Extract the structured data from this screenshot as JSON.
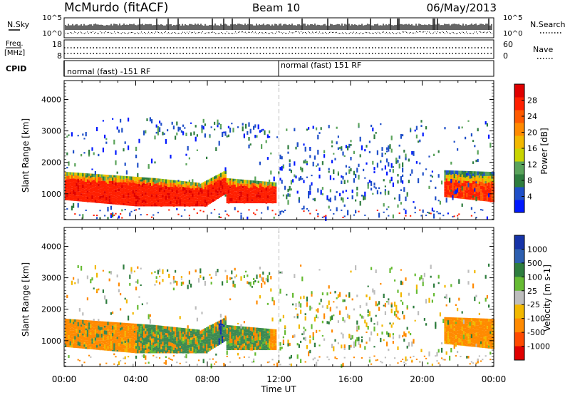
{
  "header": {
    "station": "McMurdo (fitACF)",
    "beam": "Beam 10",
    "date": "06/May/2013"
  },
  "noise_panel": {
    "left_label": "N.Sky",
    "right_label": "N.Search",
    "left_top_tick": "10^5",
    "left_bottom_tick": "10^0",
    "right_top_tick": "10^5",
    "right_bottom_tick": "10^0"
  },
  "freq_panel": {
    "left_label_1": "Freq.",
    "left_label_2": "[MHz]",
    "right_label": "Nave",
    "left_top_tick": "18",
    "left_bottom_tick": "8",
    "right_top_tick": "60",
    "right_bottom_tick": "0"
  },
  "cpid_panel": {
    "label": "CPID",
    "segments": [
      {
        "text": "normal (fast) -151 RF",
        "start_hour": 0,
        "end_hour": 12
      },
      {
        "text": "normal (fast) 151 RF",
        "start_hour": 12,
        "end_hour": 24
      }
    ]
  },
  "chart_data": [
    {
      "type": "heatmap",
      "title": "",
      "quantity": "Power",
      "ylabel": "Slant Range [km]",
      "xlabel": "Time UT",
      "xlim": [
        0,
        24
      ],
      "ylim": [
        180,
        4600
      ],
      "x_tick_labels": [
        "00:00",
        "04:00",
        "08:00",
        "12:00",
        "16:00",
        "20:00",
        "00:00"
      ],
      "y_ticks": [
        1000,
        2000,
        3000,
        4000
      ],
      "colorbar": {
        "label": "Power [dB]",
        "ticks": [
          "4",
          "8",
          "12",
          "16",
          "20",
          "24",
          "28"
        ],
        "colors": [
          "#0019ff",
          "#1f4fc8",
          "#2e7d3e",
          "#5aa35a",
          "#c9d400",
          "#f2b800",
          "#ff8a00",
          "#ff5a00",
          "#ff1f00",
          "#e00000"
        ]
      },
      "features": [
        {
          "name": "main band",
          "start_hour": 0,
          "end_hour": 11.8,
          "range_km": [
            600,
            1700
          ],
          "level": "strong (24-30 dB)"
        },
        {
          "name": "patches",
          "start_hour": 12,
          "end_hour": 19,
          "range_km": [
            800,
            2500
          ],
          "level": "weak (4-10 dB)"
        },
        {
          "name": "late band",
          "start_hour": 21.2,
          "end_hour": 24,
          "range_km": [
            800,
            1800
          ],
          "level": "moderate to strong"
        }
      ]
    },
    {
      "type": "heatmap",
      "title": "",
      "quantity": "Velocity",
      "ylabel": "Slant Range [km]",
      "xlabel": "Time UT",
      "xlim": [
        0,
        24
      ],
      "ylim": [
        180,
        4600
      ],
      "x_tick_labels": [
        "00:00",
        "04:00",
        "08:00",
        "12:00",
        "16:00",
        "20:00",
        "00:00"
      ],
      "y_ticks": [
        1000,
        2000,
        3000,
        4000
      ],
      "colorbar": {
        "label": "Velocity [m s-1]",
        "ticks": [
          "1000",
          "500",
          "100",
          "25",
          "-25",
          "-100",
          "-500",
          "-1000"
        ],
        "colors": [
          "#1633a8",
          "#2d5fb0",
          "#2e7d3e",
          "#66bb33",
          "#bdbdbd",
          "#f2b800",
          "#ff8a00",
          "#ff4a00",
          "#e00000"
        ]
      },
      "features": [
        {
          "name": "main band",
          "start_hour": 0,
          "end_hour": 11.8,
          "range_km": [
            600,
            1700
          ],
          "velocity": "orange (-100 to -500) early, green (100) mid-day"
        },
        {
          "name": "late band",
          "start_hour": 21.2,
          "end_hour": 24,
          "range_km": [
            800,
            1800
          ],
          "velocity": "orange (-100 to -500)"
        }
      ]
    }
  ]
}
